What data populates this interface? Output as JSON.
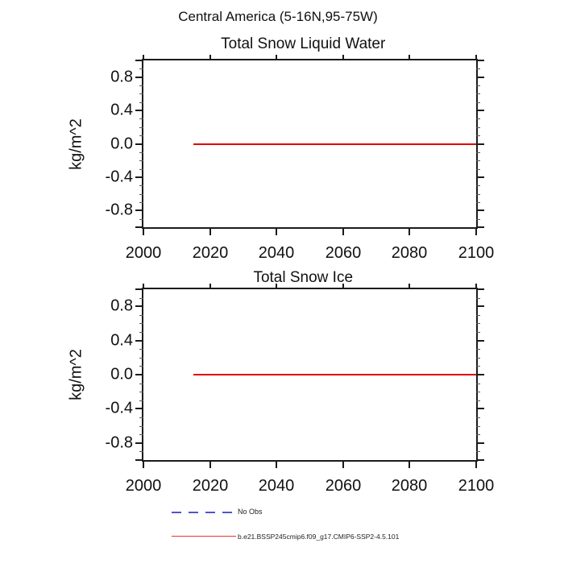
{
  "figure_title": "Central America (5-16N,95-75W)",
  "colors": {
    "axis": "#1b1b1b",
    "series_red": "#e10000",
    "no_obs_blue": "#5254cc",
    "legend_red": "#ee3333"
  },
  "legend": {
    "items": [
      {
        "label": "No Obs",
        "line_style": "dashed",
        "color": "#5254cc"
      },
      {
        "label": "b.e21.BSSP245cmip6.f09_g17.CMIP6-SSP2-4.5.101",
        "line_style": "solid",
        "color": "#ee3333"
      }
    ]
  },
  "chart_data": [
    {
      "type": "line",
      "title": "Total Snow Liquid Water",
      "ylabel": "kg/m^2",
      "xlim": [
        2000,
        2100
      ],
      "ylim": [
        -1.0,
        1.0
      ],
      "xticks": [
        2000,
        2020,
        2040,
        2060,
        2080,
        2100
      ],
      "xtick_labels": [
        "2000",
        "2020",
        "2040",
        "2060",
        "2080",
        "2100"
      ],
      "yticks": [
        0.8,
        0.4,
        0.0,
        -0.4,
        -0.8
      ],
      "ytick_labels": [
        "0.8",
        "0.4",
        "0.0",
        "-0.4",
        "-0.8"
      ],
      "y_minor_step": 0.1,
      "grid": false,
      "legend_position": "none",
      "series": [
        {
          "name": "b.e21.BSSP245cmip6.f09_g17.CMIP6-SSP2-4.5.101",
          "color": "#e10000",
          "x": [
            2015,
            2100
          ],
          "y": [
            0.0,
            0.0
          ]
        }
      ]
    },
    {
      "type": "line",
      "title": "Total Snow Ice",
      "ylabel": "kg/m^2",
      "xlim": [
        2000,
        2100
      ],
      "ylim": [
        -1.0,
        1.0
      ],
      "xticks": [
        2000,
        2020,
        2040,
        2060,
        2080,
        2100
      ],
      "xtick_labels": [
        "2000",
        "2020",
        "2040",
        "2060",
        "2080",
        "2100"
      ],
      "yticks": [
        0.8,
        0.4,
        0.0,
        -0.4,
        -0.8
      ],
      "ytick_labels": [
        "0.8",
        "0.4",
        "0.0",
        "-0.4",
        "-0.8"
      ],
      "y_minor_step": 0.1,
      "grid": false,
      "legend_position": "none",
      "series": [
        {
          "name": "b.e21.BSSP245cmip6.f09_g17.CMIP6-SSP2-4.5.101",
          "color": "#e10000",
          "x": [
            2015,
            2100
          ],
          "y": [
            0.0,
            0.0
          ]
        }
      ]
    }
  ]
}
